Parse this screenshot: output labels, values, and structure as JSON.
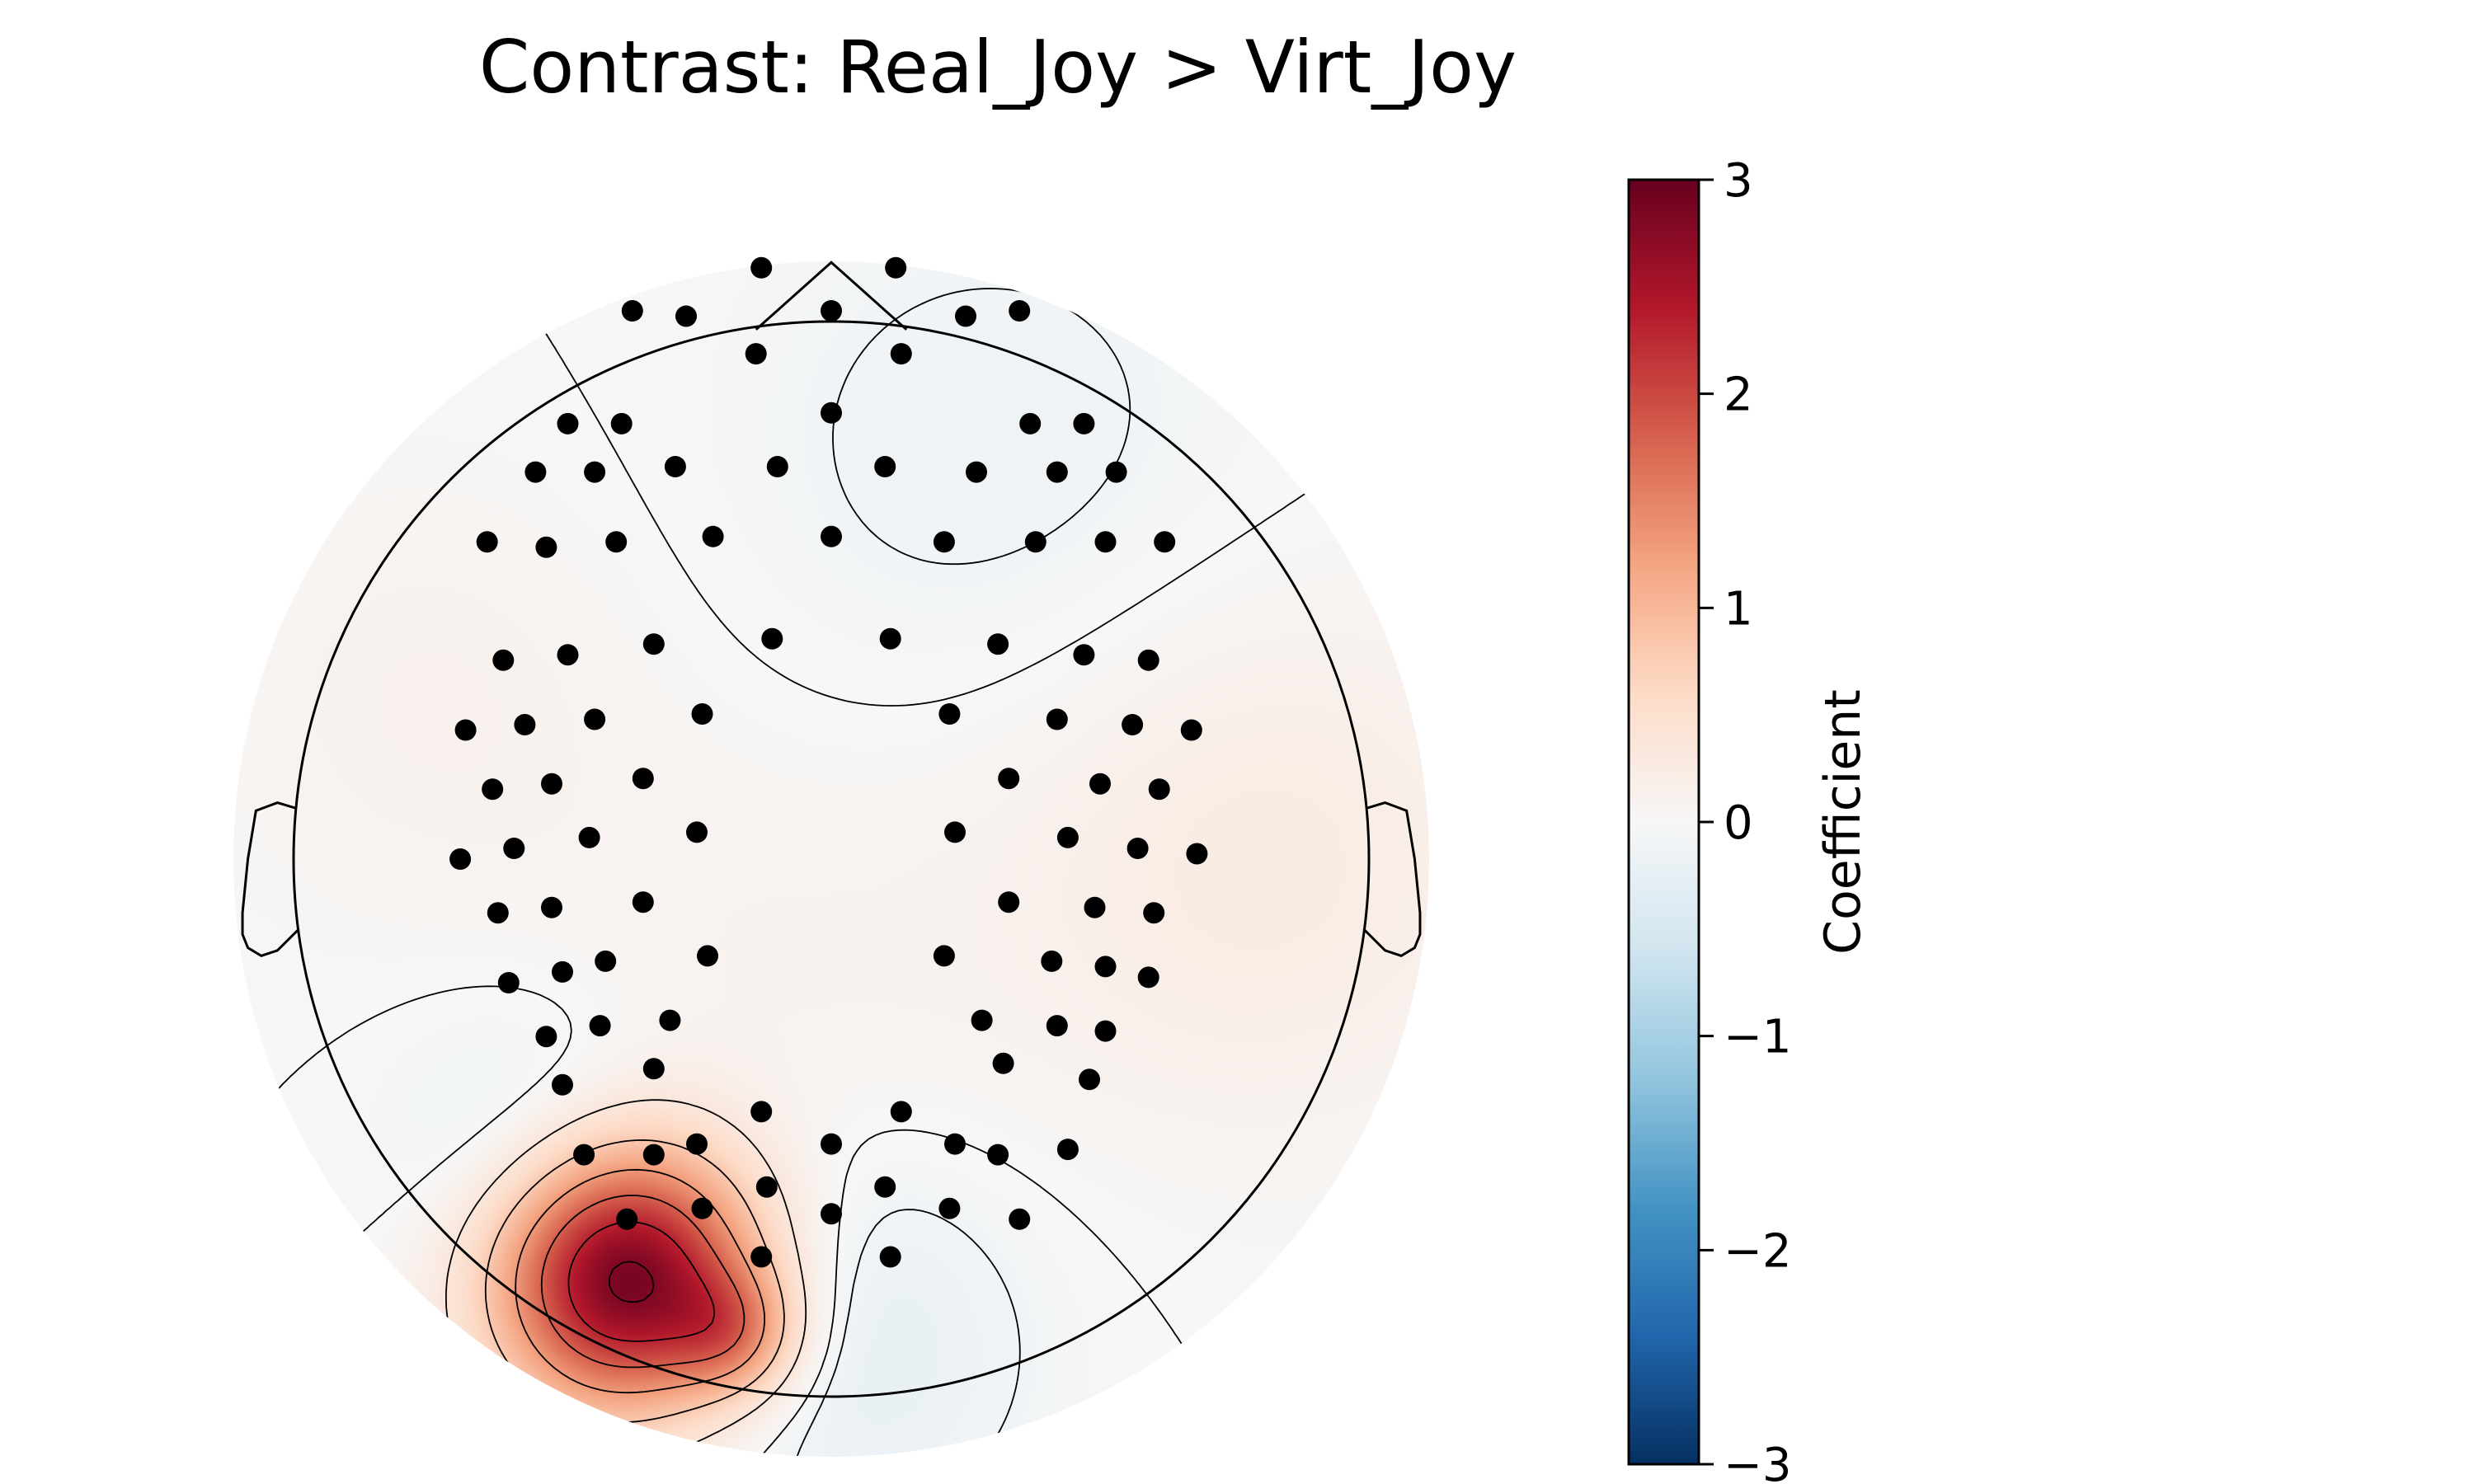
{
  "chart_data": {
    "type": "heatmap",
    "subtype": "eeg-topomap",
    "title": "Contrast: Real_Joy > Virt_Joy",
    "colormap": "RdBu_r",
    "colorbar": {
      "label": "Coefficient",
      "vmin": -3,
      "vmax": 3,
      "ticks": [
        3,
        2,
        1,
        0,
        -1,
        -2,
        -3
      ],
      "tick_labels": [
        "3",
        "2",
        "1",
        "0",
        "−1",
        "−2",
        "−3"
      ],
      "position": "right"
    },
    "head": {
      "nose": true,
      "ears": true,
      "outline": true
    },
    "sources": [
      {
        "x": -0.38,
        "y": -0.78,
        "value": 3.0,
        "spread": 0.17
      },
      {
        "x": -0.18,
        "y": -0.88,
        "value": 0.9,
        "spread": 0.08
      },
      {
        "x": 0.0,
        "y": -0.88,
        "value": -0.3,
        "spread": 0.25
      },
      {
        "x": -0.55,
        "y": -0.55,
        "value": -0.3,
        "spread": 0.18
      },
      {
        "x": 0.8,
        "y": 0.0,
        "value": 0.25,
        "spread": 0.35
      },
      {
        "x": -0.75,
        "y": 0.3,
        "value": 0.12,
        "spread": 0.3
      },
      {
        "x": 0.3,
        "y": 0.75,
        "value": -0.15,
        "spread": 0.35
      },
      {
        "x": -0.1,
        "y": -0.25,
        "value": 0.1,
        "spread": 0.35
      }
    ],
    "sensors": [
      [
        -0.13,
        1.1
      ],
      [
        0.12,
        1.1
      ],
      [
        -0.37,
        1.02
      ],
      [
        -0.27,
        1.01
      ],
      [
        0.0,
        1.02
      ],
      [
        0.25,
        1.01
      ],
      [
        0.35,
        1.02
      ],
      [
        -0.14,
        0.94
      ],
      [
        0.13,
        0.94
      ],
      [
        0.0,
        0.83
      ],
      [
        -0.49,
        0.81
      ],
      [
        -0.39,
        0.81
      ],
      [
        0.37,
        0.81
      ],
      [
        0.47,
        0.81
      ],
      [
        -0.55,
        0.72
      ],
      [
        -0.44,
        0.72
      ],
      [
        -0.29,
        0.73
      ],
      [
        -0.1,
        0.73
      ],
      [
        0.1,
        0.73
      ],
      [
        0.27,
        0.72
      ],
      [
        0.42,
        0.72
      ],
      [
        0.53,
        0.72
      ],
      [
        -0.64,
        0.59
      ],
      [
        -0.53,
        0.58
      ],
      [
        -0.4,
        0.59
      ],
      [
        -0.22,
        0.6
      ],
      [
        0.0,
        0.6
      ],
      [
        0.21,
        0.59
      ],
      [
        0.38,
        0.59
      ],
      [
        0.51,
        0.59
      ],
      [
        0.62,
        0.59
      ],
      [
        -0.61,
        0.37
      ],
      [
        -0.49,
        0.38
      ],
      [
        -0.33,
        0.4
      ],
      [
        -0.11,
        0.41
      ],
      [
        0.11,
        0.41
      ],
      [
        0.31,
        0.4
      ],
      [
        0.47,
        0.38
      ],
      [
        0.59,
        0.37
      ],
      [
        -0.68,
        0.24
      ],
      [
        -0.57,
        0.25
      ],
      [
        -0.44,
        0.26
      ],
      [
        -0.24,
        0.27
      ],
      [
        0.22,
        0.27
      ],
      [
        0.42,
        0.26
      ],
      [
        0.56,
        0.25
      ],
      [
        0.67,
        0.24
      ],
      [
        -0.63,
        0.13
      ],
      [
        -0.52,
        0.14
      ],
      [
        -0.35,
        0.15
      ],
      [
        0.33,
        0.15
      ],
      [
        0.5,
        0.14
      ],
      [
        0.61,
        0.13
      ],
      [
        -0.69,
        0.0
      ],
      [
        -0.59,
        0.02
      ],
      [
        -0.45,
        0.04
      ],
      [
        -0.25,
        0.05
      ],
      [
        0.23,
        0.05
      ],
      [
        0.44,
        0.04
      ],
      [
        0.57,
        0.02
      ],
      [
        0.68,
        0.01
      ],
      [
        -0.62,
        -0.1
      ],
      [
        -0.52,
        -0.09
      ],
      [
        -0.35,
        -0.08
      ],
      [
        0.33,
        -0.08
      ],
      [
        0.49,
        -0.09
      ],
      [
        0.6,
        -0.1
      ],
      [
        -0.6,
        -0.23
      ],
      [
        -0.5,
        -0.21
      ],
      [
        -0.42,
        -0.19
      ],
      [
        -0.23,
        -0.18
      ],
      [
        0.21,
        -0.18
      ],
      [
        0.41,
        -0.19
      ],
      [
        0.51,
        -0.2
      ],
      [
        0.59,
        -0.22
      ],
      [
        -0.53,
        -0.33
      ],
      [
        -0.43,
        -0.31
      ],
      [
        -0.3,
        -0.3
      ],
      [
        0.28,
        -0.3
      ],
      [
        0.42,
        -0.31
      ],
      [
        0.51,
        -0.32
      ],
      [
        -0.5,
        -0.42
      ],
      [
        -0.33,
        -0.39
      ],
      [
        0.32,
        -0.38
      ],
      [
        0.48,
        -0.41
      ],
      [
        -0.13,
        -0.47
      ],
      [
        0.13,
        -0.47
      ],
      [
        -0.46,
        -0.55
      ],
      [
        -0.33,
        -0.55
      ],
      [
        -0.25,
        -0.53
      ],
      [
        0.0,
        -0.53
      ],
      [
        0.23,
        -0.53
      ],
      [
        0.31,
        -0.55
      ],
      [
        0.44,
        -0.54
      ],
      [
        -0.12,
        -0.61
      ],
      [
        0.1,
        -0.61
      ],
      [
        -0.38,
        -0.67
      ],
      [
        -0.24,
        -0.65
      ],
      [
        0.0,
        -0.66
      ],
      [
        0.22,
        -0.65
      ],
      [
        0.35,
        -0.67
      ],
      [
        -0.13,
        -0.74
      ],
      [
        0.11,
        -0.74
      ]
    ]
  }
}
